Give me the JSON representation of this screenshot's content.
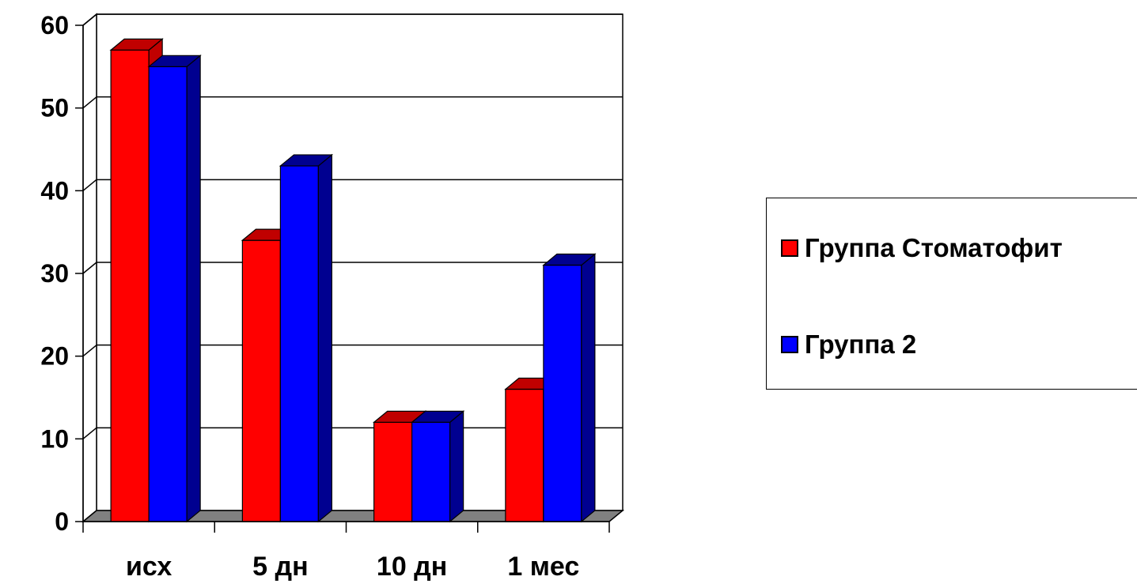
{
  "chart_data": {
    "type": "bar",
    "categories": [
      "исх",
      "5 дн",
      "10 дн",
      "1 мес"
    ],
    "series": [
      {
        "name": "Группа Стоматофит",
        "values": [
          57,
          34,
          12,
          16
        ],
        "color": "#ff0000",
        "shade": "#c00000"
      },
      {
        "name": "Группа 2",
        "values": [
          55,
          43,
          12,
          31
        ],
        "color": "#0000ff",
        "shade": "#000090"
      }
    ],
    "ylim": [
      0,
      60
    ],
    "yticks": [
      "0",
      "10",
      "20",
      "30",
      "40",
      "50",
      "60"
    ],
    "grid": true,
    "legend_position": "right",
    "three_d": true
  }
}
